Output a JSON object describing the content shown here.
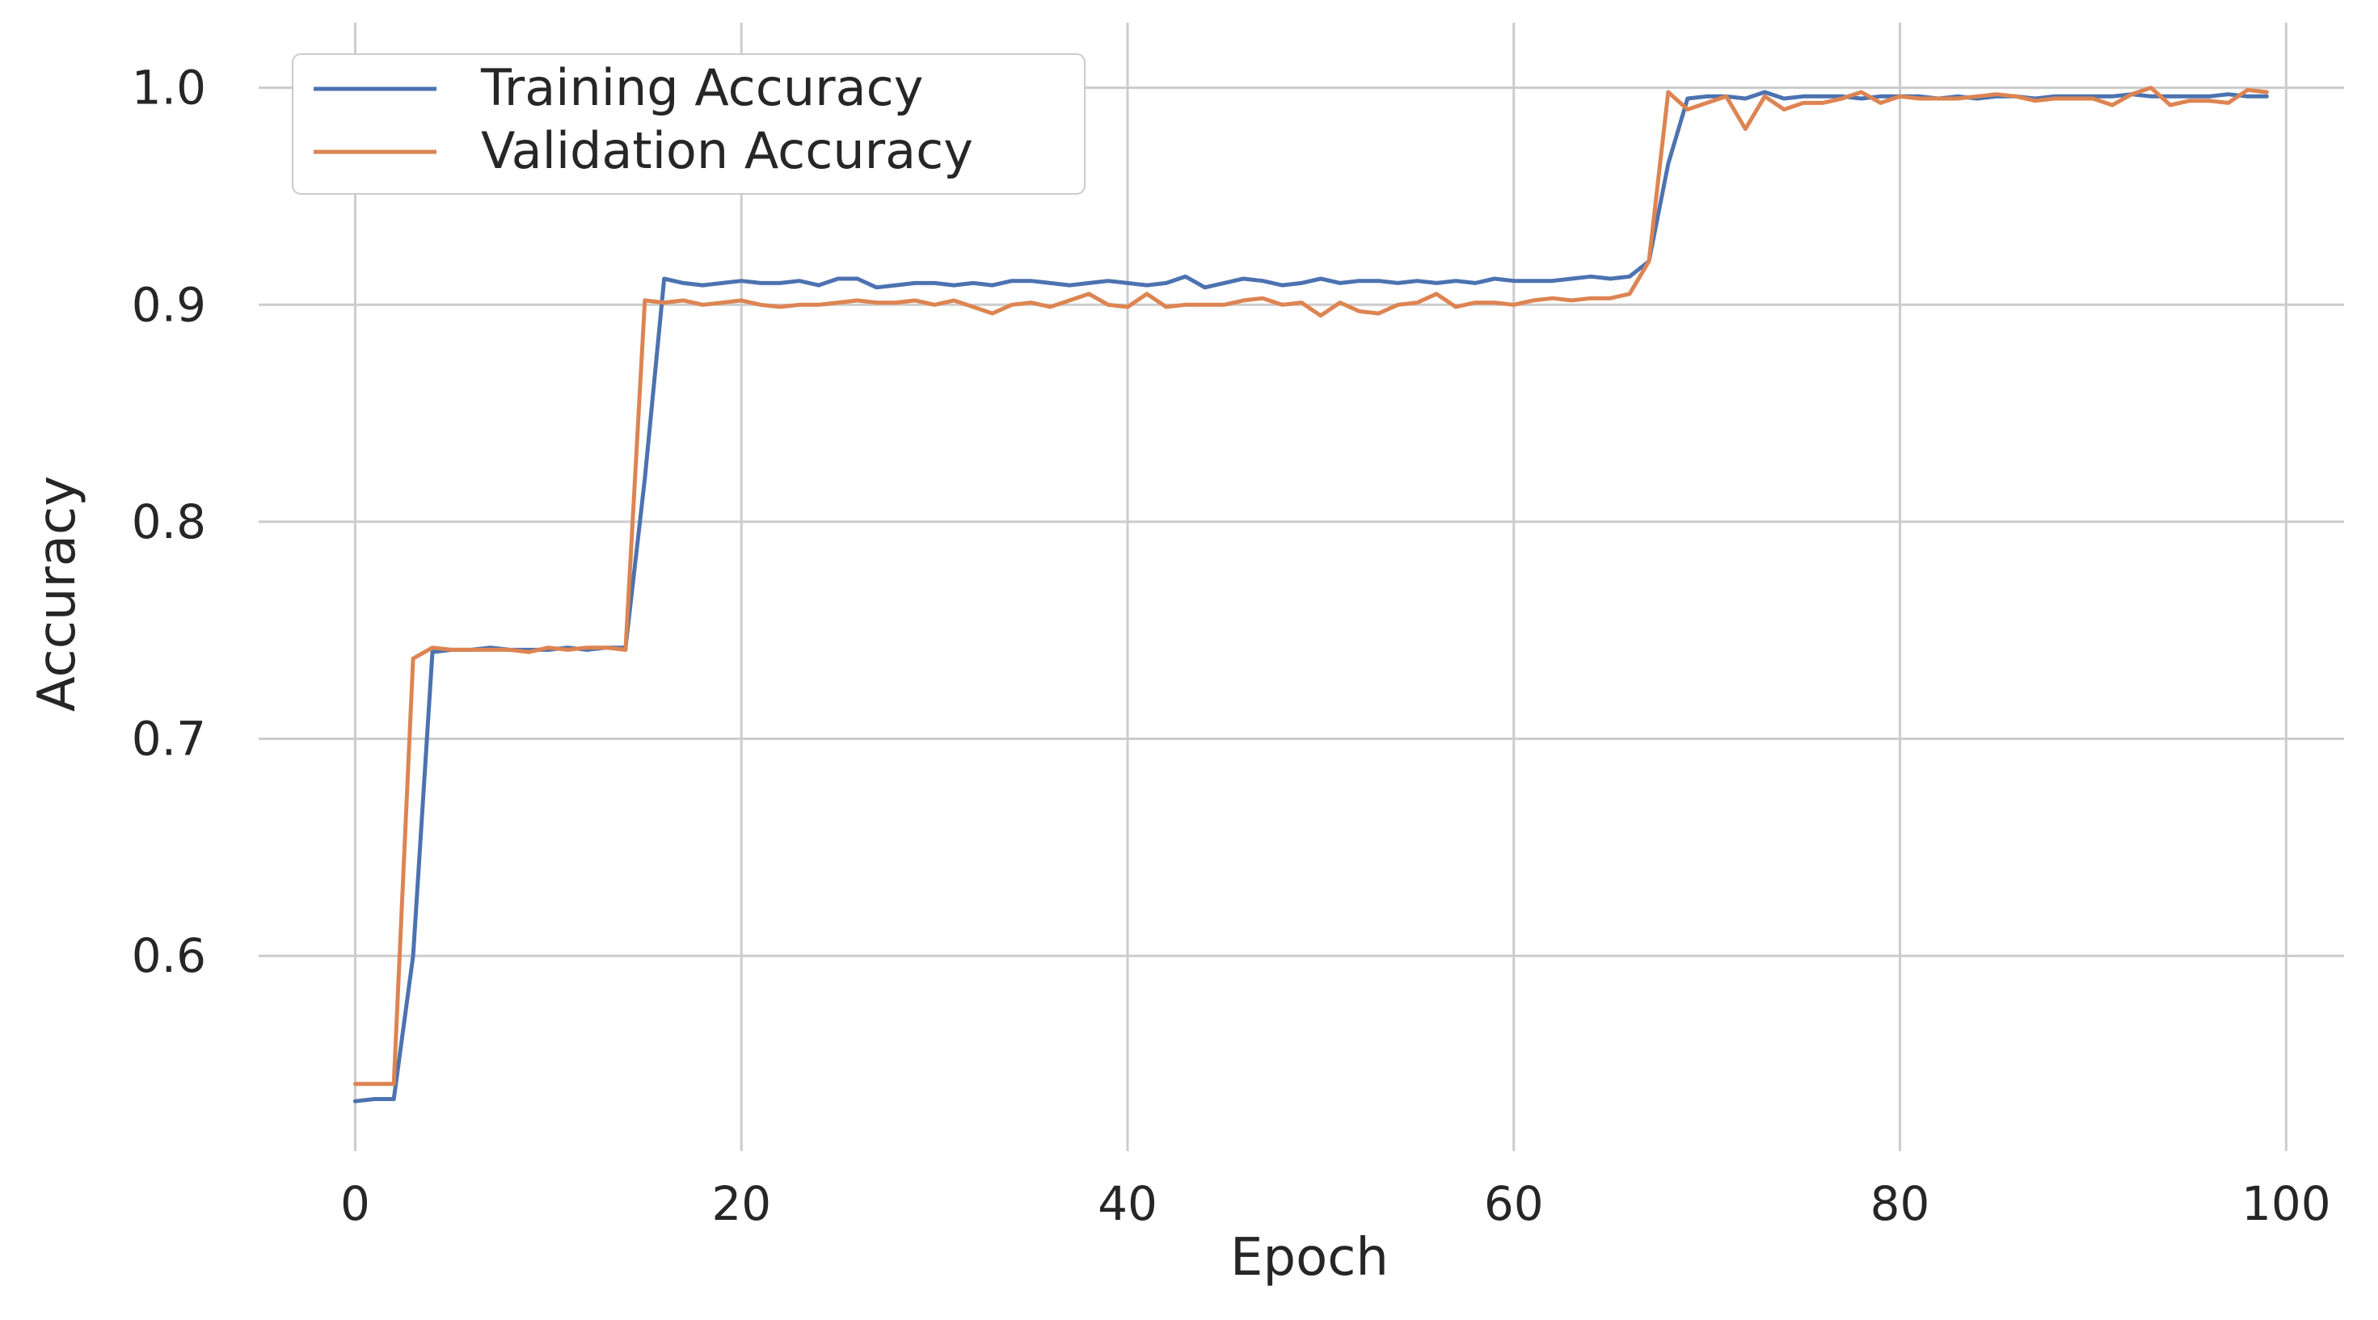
{
  "chart_data": {
    "type": "line",
    "xlabel": "Epoch",
    "ylabel": "Accuracy",
    "xlim": [
      -5,
      103
    ],
    "ylim": [
      0.51,
      1.03
    ],
    "xticks": [
      0,
      20,
      40,
      60,
      80,
      100
    ],
    "yticks": [
      0.6,
      0.7,
      0.8,
      0.9,
      1.0
    ],
    "xtick_labels": [
      "0",
      "20",
      "40",
      "60",
      "80",
      "100"
    ],
    "ytick_labels": [
      "0.6",
      "0.7",
      "0.8",
      "0.9",
      "1.0"
    ],
    "grid": true,
    "legend_position": "upper-left",
    "series": [
      {
        "name": "Training Accuracy",
        "color": "#4c72b0",
        "values": [
          0.533,
          0.534,
          0.534,
          0.6,
          0.74,
          0.741,
          0.741,
          0.742,
          0.741,
          0.741,
          0.741,
          0.742,
          0.741,
          0.742,
          0.742,
          0.82,
          0.912,
          0.91,
          0.909,
          0.91,
          0.911,
          0.91,
          0.91,
          0.911,
          0.909,
          0.912,
          0.912,
          0.908,
          0.909,
          0.91,
          0.91,
          0.909,
          0.91,
          0.909,
          0.911,
          0.911,
          0.91,
          0.909,
          0.91,
          0.911,
          0.91,
          0.909,
          0.91,
          0.913,
          0.908,
          0.91,
          0.912,
          0.911,
          0.909,
          0.91,
          0.912,
          0.91,
          0.911,
          0.911,
          0.91,
          0.911,
          0.91,
          0.911,
          0.91,
          0.912,
          0.911,
          0.911,
          0.911,
          0.912,
          0.913,
          0.912,
          0.913,
          0.92,
          0.965,
          0.995,
          0.996,
          0.996,
          0.995,
          0.998,
          0.995,
          0.996,
          0.996,
          0.996,
          0.995,
          0.996,
          0.996,
          0.996,
          0.995,
          0.996,
          0.995,
          0.996,
          0.996,
          0.995,
          0.996,
          0.996,
          0.996,
          0.996,
          0.997,
          0.996,
          0.996,
          0.996,
          0.996,
          0.997,
          0.996,
          0.996
        ]
      },
      {
        "name": "Validation Accuracy",
        "color": "#dd8452",
        "values": [
          0.541,
          0.541,
          0.541,
          0.737,
          0.742,
          0.741,
          0.741,
          0.741,
          0.741,
          0.74,
          0.742,
          0.741,
          0.742,
          0.742,
          0.741,
          0.902,
          0.901,
          0.902,
          0.9,
          0.901,
          0.902,
          0.9,
          0.899,
          0.9,
          0.9,
          0.901,
          0.902,
          0.901,
          0.901,
          0.902,
          0.9,
          0.902,
          0.899,
          0.896,
          0.9,
          0.901,
          0.899,
          0.902,
          0.905,
          0.9,
          0.899,
          0.905,
          0.899,
          0.9,
          0.9,
          0.9,
          0.902,
          0.903,
          0.9,
          0.901,
          0.895,
          0.901,
          0.897,
          0.896,
          0.9,
          0.901,
          0.905,
          0.899,
          0.901,
          0.901,
          0.9,
          0.902,
          0.903,
          0.902,
          0.903,
          0.903,
          0.905,
          0.92,
          0.998,
          0.99,
          0.993,
          0.996,
          0.981,
          0.996,
          0.99,
          0.993,
          0.993,
          0.995,
          0.998,
          0.993,
          0.996,
          0.995,
          0.995,
          0.995,
          0.996,
          0.997,
          0.996,
          0.994,
          0.995,
          0.995,
          0.995,
          0.992,
          0.997,
          1.0,
          0.992,
          0.994,
          0.994,
          0.993,
          0.999,
          0.998
        ]
      }
    ]
  }
}
